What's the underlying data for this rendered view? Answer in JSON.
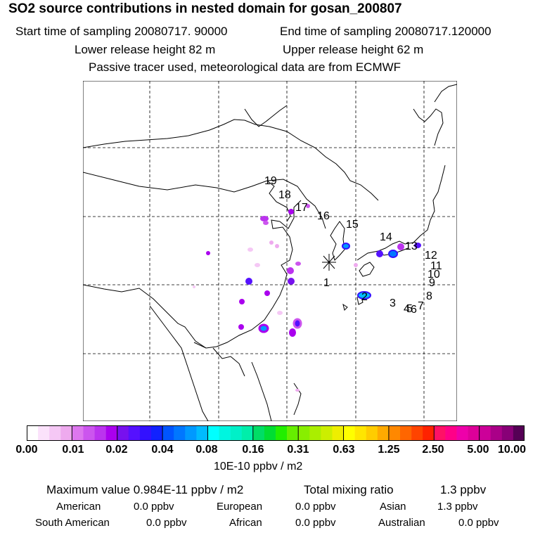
{
  "header": {
    "title": "SO2 source contributions in nested domain for gosan_200807",
    "start_time": "Start time of sampling 20080717. 90000",
    "end_time": "End time of sampling 20080717.120000",
    "lower_release": "Lower release height   82 m",
    "upper_release": "Upper release height   62 m",
    "tracer_note": "Passive tracer used, meteorological data are from ECMWF"
  },
  "map": {
    "receptor_icon": "asterisk-icon",
    "site_labels": [
      "1",
      "2",
      "3",
      "4",
      "5",
      "6",
      "7",
      "8",
      "9",
      "10",
      "11",
      "12",
      "13",
      "14",
      "15",
      "16",
      "17",
      "18",
      "19"
    ]
  },
  "colorbar": {
    "ticks": [
      "0.00",
      "0.01",
      "0.02",
      "0.04",
      "0.08",
      "0.16",
      "0.31",
      "0.63",
      "1.25",
      "2.50",
      "5.00",
      "10.00"
    ],
    "units": "10E-10 ppbv / m2",
    "colors": [
      [
        "#ffffff",
        "#fbe2fb",
        "#f5c8f5",
        "#eeaaee"
      ],
      [
        "#dd77ee",
        "#cc55ee",
        "#bb33ee",
        "#aa00ee"
      ],
      [
        "#7711ee",
        "#5511ff",
        "#3311ff",
        "#1122ff"
      ],
      [
        "#0055ff",
        "#0077ff",
        "#0099ff",
        "#00bbff"
      ],
      [
        "#00ffff",
        "#00f5e0",
        "#00f0c8",
        "#00eeaa"
      ],
      [
        "#00dd66",
        "#00dd33",
        "#22ee00",
        "#66ee00"
      ],
      [
        "#88ee00",
        "#aaee00",
        "#ccee00",
        "#eeee00"
      ],
      [
        "#ffff00",
        "#ffe600",
        "#ffcc00",
        "#ffaa00"
      ],
      [
        "#ff8800",
        "#ff6600",
        "#ff4400",
        "#ff2200"
      ],
      [
        "#ff1166",
        "#ff0088",
        "#ee00aa",
        "#dd0099"
      ],
      [
        "#cc0099",
        "#aa0088",
        "#880077",
        "#550055"
      ]
    ]
  },
  "summary": {
    "max_value": "Maximum value  0.984E-11 ppbv / m2",
    "total_label": "Total mixing ratio",
    "total_value": "1.3 ppbv",
    "regions": [
      {
        "name": "American",
        "value": "0.0 ppbv"
      },
      {
        "name": "European",
        "value": "0.0 ppbv"
      },
      {
        "name": "Asian",
        "value": "1.3 ppbv"
      },
      {
        "name": "South American",
        "value": "0.0 ppbv"
      },
      {
        "name": "African",
        "value": "0.0 ppbv"
      },
      {
        "name": "Australian",
        "value": "0.0 ppbv"
      }
    ]
  }
}
